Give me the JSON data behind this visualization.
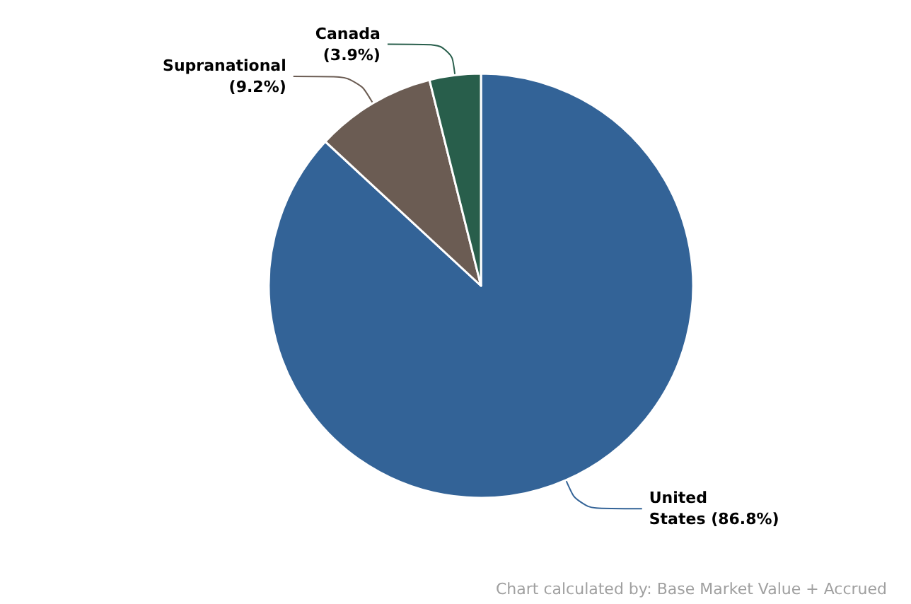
{
  "chart_data": {
    "type": "pie",
    "categories": [
      "United States",
      "Supranational",
      "Canada"
    ],
    "values": [
      86.8,
      9.2,
      3.9
    ],
    "value_labels": [
      "(86.8%)",
      "(9.2%)",
      "(3.9%)"
    ],
    "colors": [
      "#336397",
      "#6b5c53",
      "#285e4b"
    ],
    "annotations": [
      "Chart calculated by: Base Market Value + Accrued"
    ]
  }
}
